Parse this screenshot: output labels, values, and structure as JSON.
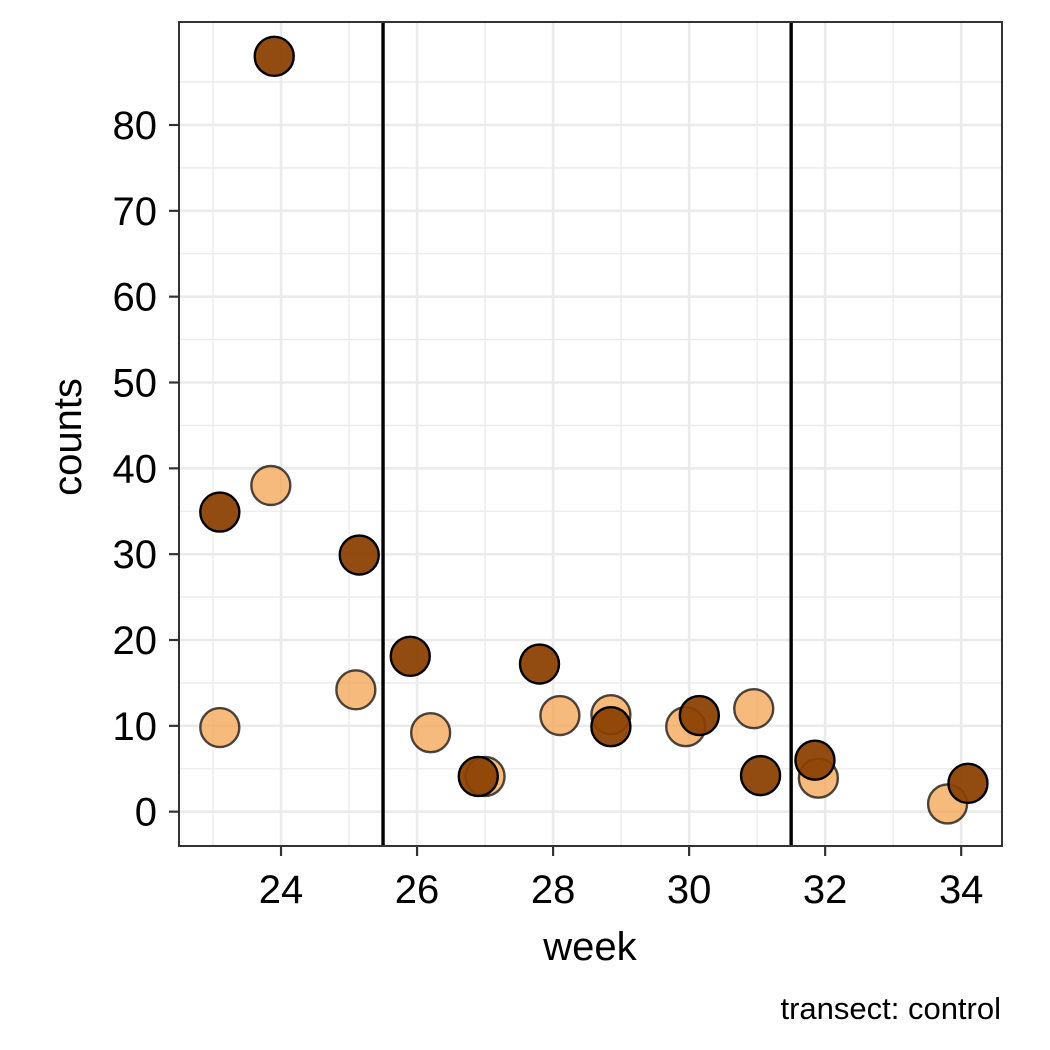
{
  "chart_data": {
    "type": "scatter",
    "title": "",
    "xlabel": "week",
    "ylabel": "counts",
    "caption": "transect: control",
    "xlim": [
      22.5,
      34.6
    ],
    "ylim": [
      -4,
      92
    ],
    "x_ticks": [
      24,
      26,
      28,
      30,
      32,
      34
    ],
    "y_ticks": [
      0,
      10,
      20,
      30,
      40,
      50,
      60,
      70,
      80
    ],
    "grid": true,
    "vlines": [
      25.5,
      31.5
    ],
    "series": [
      {
        "color": "#f4a04b",
        "points": [
          {
            "x": 23.1,
            "y": 9.8
          },
          {
            "x": 23.85,
            "y": 38
          },
          {
            "x": 25.1,
            "y": 14.2
          },
          {
            "x": 26.2,
            "y": 9.2
          },
          {
            "x": 27.0,
            "y": 4.1
          },
          {
            "x": 28.1,
            "y": 11.2
          },
          {
            "x": 28.85,
            "y": 11.3
          },
          {
            "x": 29.95,
            "y": 9.9
          },
          {
            "x": 30.95,
            "y": 12
          },
          {
            "x": 31.9,
            "y": 3.9
          },
          {
            "x": 33.8,
            "y": 0.9
          }
        ]
      },
      {
        "color": "#8b4102",
        "points": [
          {
            "x": 23.1,
            "y": 34.9
          },
          {
            "x": 23.9,
            "y": 88
          },
          {
            "x": 25.15,
            "y": 29.9
          },
          {
            "x": 25.9,
            "y": 18.1
          },
          {
            "x": 26.9,
            "y": 4.1
          },
          {
            "x": 27.8,
            "y": 17.2
          },
          {
            "x": 28.85,
            "y": 9.9
          },
          {
            "x": 30.15,
            "y": 11.2
          },
          {
            "x": 31.05,
            "y": 4.2
          },
          {
            "x": 31.85,
            "y": 6
          },
          {
            "x": 34.1,
            "y": 3.3
          }
        ]
      }
    ]
  }
}
